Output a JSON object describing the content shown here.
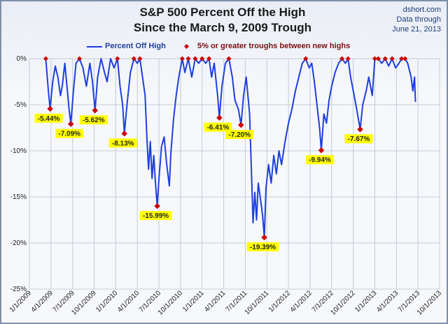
{
  "chart_data": {
    "type": "line",
    "title": "S&P 500 Percent Off the High",
    "subtitle": "Since the March 9, 2009 Trough",
    "source": [
      "dshort.com",
      "Data through",
      "June 21, 2013"
    ],
    "ylim": [
      -25,
      0
    ],
    "y_ticks": [
      "0%",
      "-5%",
      "-10%",
      "-15%",
      "-20%",
      "-25%"
    ],
    "x_ticks": [
      "1/1/2009",
      "4/1/2009",
      "7/1/2009",
      "10/1/2009",
      "1/1/2010",
      "4/1/2010",
      "7/1/2010",
      "10/1/2010",
      "1/1/2011",
      "4/1/2011",
      "7/1/2011",
      "10/1/2011",
      "1/1/2012",
      "4/1/2012",
      "7/1/2012",
      "10/1/2012",
      "1/1/2013",
      "4/1/2013",
      "7/1/2013",
      "10/1/2013"
    ],
    "series": [
      {
        "name": "Percent Off High",
        "color": "#1f3fe0",
        "points": [
          [
            2009.19,
            0
          ],
          [
            2009.22,
            -3.5
          ],
          [
            2009.24,
            -5.44
          ],
          [
            2009.27,
            -2.5
          ],
          [
            2009.3,
            -0.8
          ],
          [
            2009.33,
            -2.0
          ],
          [
            2009.36,
            -4.0
          ],
          [
            2009.38,
            -3.0
          ],
          [
            2009.41,
            -0.5
          ],
          [
            2009.44,
            -3.5
          ],
          [
            2009.46,
            -5.5
          ],
          [
            2009.48,
            -7.09
          ],
          [
            2009.51,
            -3.5
          ],
          [
            2009.54,
            -0.5
          ],
          [
            2009.58,
            0
          ],
          [
            2009.62,
            -1.0
          ],
          [
            2009.66,
            -3.0
          ],
          [
            2009.7,
            -0.5
          ],
          [
            2009.73,
            -2.5
          ],
          [
            2009.76,
            -5.62
          ],
          [
            2009.79,
            -2.0
          ],
          [
            2009.83,
            0
          ],
          [
            2009.87,
            -1.5
          ],
          [
            2009.9,
            -2.5
          ],
          [
            2009.94,
            0
          ],
          [
            2009.98,
            -1.0
          ],
          [
            2010.02,
            0
          ],
          [
            2010.05,
            -3.0
          ],
          [
            2010.08,
            -5.0
          ],
          [
            2010.1,
            -8.13
          ],
          [
            2010.13,
            -5.0
          ],
          [
            2010.17,
            -1.5
          ],
          [
            2010.21,
            0
          ],
          [
            2010.25,
            -0.5
          ],
          [
            2010.28,
            0
          ],
          [
            2010.31,
            -2.0
          ],
          [
            2010.34,
            -4.0
          ],
          [
            2010.36,
            -8.5
          ],
          [
            2010.38,
            -12.0
          ],
          [
            2010.4,
            -9.0
          ],
          [
            2010.42,
            -13.0
          ],
          [
            2010.44,
            -10.5
          ],
          [
            2010.46,
            -13.5
          ],
          [
            2010.48,
            -15.99
          ],
          [
            2010.5,
            -13.0
          ],
          [
            2010.53,
            -9.5
          ],
          [
            2010.56,
            -8.5
          ],
          [
            2010.59,
            -11.5
          ],
          [
            2010.62,
            -13.8
          ],
          [
            2010.64,
            -10.0
          ],
          [
            2010.67,
            -6.5
          ],
          [
            2010.7,
            -4.0
          ],
          [
            2010.73,
            -2.0
          ],
          [
            2010.77,
            0
          ],
          [
            2010.8,
            -1.5
          ],
          [
            2010.84,
            0
          ],
          [
            2010.88,
            -2.0
          ],
          [
            2010.92,
            0
          ],
          [
            2010.96,
            -0.5
          ],
          [
            2011.0,
            0
          ],
          [
            2011.04,
            -0.5
          ],
          [
            2011.08,
            0
          ],
          [
            2011.11,
            -2.0
          ],
          [
            2011.14,
            -0.5
          ],
          [
            2011.18,
            -4.0
          ],
          [
            2011.2,
            -6.41
          ],
          [
            2011.23,
            -3.0
          ],
          [
            2011.27,
            -0.5
          ],
          [
            2011.31,
            0
          ],
          [
            2011.35,
            -2.0
          ],
          [
            2011.38,
            -4.5
          ],
          [
            2011.42,
            -5.5
          ],
          [
            2011.45,
            -7.2
          ],
          [
            2011.48,
            -4.0
          ],
          [
            2011.51,
            -2.0
          ],
          [
            2011.55,
            -6.0
          ],
          [
            2011.57,
            -12.0
          ],
          [
            2011.59,
            -17.8
          ],
          [
            2011.61,
            -14.5
          ],
          [
            2011.63,
            -17.5
          ],
          [
            2011.65,
            -13.5
          ],
          [
            2011.68,
            -15.5
          ],
          [
            2011.7,
            -17.0
          ],
          [
            2011.72,
            -19.39
          ],
          [
            2011.74,
            -14.0
          ],
          [
            2011.77,
            -11.5
          ],
          [
            2011.8,
            -13.5
          ],
          [
            2011.83,
            -10.5
          ],
          [
            2011.86,
            -12.5
          ],
          [
            2011.89,
            -10.0
          ],
          [
            2011.92,
            -11.5
          ],
          [
            2011.96,
            -9.0
          ],
          [
            2012.0,
            -7.0
          ],
          [
            2012.04,
            -5.5
          ],
          [
            2012.08,
            -3.5
          ],
          [
            2012.12,
            -2.0
          ],
          [
            2012.16,
            -0.5
          ],
          [
            2012.2,
            0
          ],
          [
            2012.24,
            -1.0
          ],
          [
            2012.27,
            -0.5
          ],
          [
            2012.3,
            -2.5
          ],
          [
            2012.33,
            -5.0
          ],
          [
            2012.36,
            -7.5
          ],
          [
            2012.38,
            -9.94
          ],
          [
            2012.41,
            -6.0
          ],
          [
            2012.44,
            -7.0
          ],
          [
            2012.47,
            -4.5
          ],
          [
            2012.5,
            -3.0
          ],
          [
            2012.54,
            -1.5
          ],
          [
            2012.58,
            -0.5
          ],
          [
            2012.62,
            0
          ],
          [
            2012.66,
            -0.5
          ],
          [
            2012.69,
            0
          ],
          [
            2012.72,
            -2.0
          ],
          [
            2012.76,
            -4.0
          ],
          [
            2012.79,
            -5.5
          ],
          [
            2012.83,
            -7.67
          ],
          [
            2012.86,
            -5.0
          ],
          [
            2012.9,
            -3.5
          ],
          [
            2012.93,
            -2.0
          ],
          [
            2012.97,
            -4.0
          ],
          [
            2013.0,
            0
          ],
          [
            2013.04,
            0
          ],
          [
            2013.08,
            -0.5
          ],
          [
            2013.12,
            0
          ],
          [
            2013.16,
            -0.8
          ],
          [
            2013.2,
            0
          ],
          [
            2013.24,
            -1.0
          ],
          [
            2013.28,
            -0.5
          ],
          [
            2013.31,
            0
          ],
          [
            2013.35,
            0
          ],
          [
            2013.38,
            -0.5
          ],
          [
            2013.42,
            -2.0
          ],
          [
            2013.44,
            -3.5
          ],
          [
            2013.46,
            -2.0
          ],
          [
            2013.47,
            -4.69
          ]
        ]
      }
    ],
    "troughs": {
      "name": "5% or greater troughs between new highs",
      "color": "#cc0000",
      "points": [
        {
          "x": 2009.24,
          "y": -5.44,
          "label": "-5.44%"
        },
        {
          "x": 2009.48,
          "y": -7.09,
          "label": "-7.09%"
        },
        {
          "x": 2009.76,
          "y": -5.62,
          "label": "-5.62%"
        },
        {
          "x": 2010.1,
          "y": -8.13,
          "label": "-8.13%"
        },
        {
          "x": 2010.48,
          "y": -15.99,
          "label": "-15.99%"
        },
        {
          "x": 2011.2,
          "y": -6.41,
          "label": "-6.41%"
        },
        {
          "x": 2011.45,
          "y": -7.2,
          "label": "-7.20%"
        },
        {
          "x": 2011.72,
          "y": -19.39,
          "label": "-19.39%"
        },
        {
          "x": 2012.38,
          "y": -9.94,
          "label": "-9.94%"
        },
        {
          "x": 2012.83,
          "y": -7.67,
          "label": "-7.67%"
        }
      ],
      "highs": [
        2009.19,
        2009.58,
        2010.02,
        2010.21,
        2010.28,
        2010.77,
        2010.84,
        2010.92,
        2011.0,
        2011.08,
        2011.31,
        2012.2,
        2012.62,
        2012.69,
        2013.0,
        2013.04,
        2013.12,
        2013.2,
        2013.31,
        2013.35
      ]
    },
    "legend": [
      "Percent Off High",
      "5% or greater troughs between new highs"
    ],
    "grid": true,
    "legend_position": "top"
  }
}
